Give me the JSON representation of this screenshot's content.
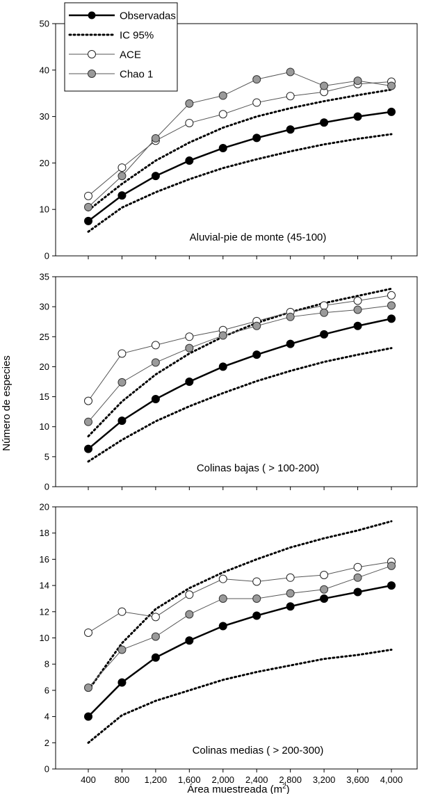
{
  "chart_data": {
    "type": "line",
    "xlabel": "Área muestreada (m",
    "xlabel_sup": "2",
    "xlabel_close": ")",
    "ylabel": "Número de especies",
    "x": [
      400,
      800,
      1200,
      1600,
      2000,
      2400,
      2800,
      3200,
      3600,
      4000
    ],
    "x_tick_labels": [
      "400",
      "800",
      "1,200",
      "1,600",
      "2,000",
      "2,400",
      "2,800",
      "3,200",
      "3,600",
      "4,000"
    ],
    "legend": {
      "placement": "top-left",
      "entries": [
        {
          "label": "Observadas",
          "key": "observadas"
        },
        {
          "label": "IC 95%",
          "key": "ic95"
        },
        {
          "label": "ACE",
          "key": "ace"
        },
        {
          "label": "Chao 1",
          "key": "chao1"
        }
      ]
    },
    "panels": [
      {
        "label": "Aluvial-pie de monte (45-100)",
        "ylim": [
          0,
          50
        ],
        "yticks": [
          0,
          10,
          20,
          30,
          40,
          50
        ],
        "series": {
          "observadas": [
            7.5,
            13,
            17.2,
            20.5,
            23.2,
            25.4,
            27.2,
            28.7,
            30.0,
            31.0
          ],
          "ic_upper": [
            9.8,
            15.5,
            20.5,
            24.4,
            27.6,
            30.0,
            31.8,
            33.3,
            34.6,
            35.8
          ],
          "ic_lower": [
            5.2,
            10.4,
            13.7,
            16.5,
            18.9,
            20.8,
            22.5,
            24.0,
            25.2,
            26.2
          ],
          "ace": [
            12.9,
            19.0,
            24.8,
            28.6,
            30.5,
            33.0,
            34.4,
            35.3,
            37.0,
            37.5
          ],
          "chao1": [
            10.5,
            17.2,
            25.3,
            32.8,
            34.5,
            38.0,
            39.6,
            36.6,
            37.7,
            36.6
          ]
        }
      },
      {
        "label": "Colinas bajas ( > 100-200)",
        "ylim": [
          0,
          35
        ],
        "yticks": [
          0,
          5,
          10,
          15,
          20,
          25,
          30,
          35
        ],
        "series": {
          "observadas": [
            6.3,
            11.0,
            14.6,
            17.5,
            20.0,
            22.0,
            23.8,
            25.4,
            26.8,
            28.0
          ],
          "ic_upper": [
            8.4,
            14.2,
            18.7,
            22.2,
            25.0,
            27.3,
            29.1,
            30.6,
            31.8,
            33.0
          ],
          "ic_lower": [
            4.2,
            7.8,
            10.9,
            13.4,
            15.6,
            17.6,
            19.3,
            20.8,
            22.0,
            23.1
          ],
          "ace": [
            14.3,
            22.2,
            23.6,
            25.0,
            26.1,
            27.6,
            29.1,
            30.2,
            31.0,
            31.9
          ],
          "chao1": [
            10.8,
            17.4,
            20.7,
            23.1,
            25.2,
            26.8,
            28.3,
            29.0,
            29.5,
            30.2
          ]
        }
      },
      {
        "label": "Colinas medias ( > 200-300)",
        "ylim": [
          0,
          20
        ],
        "yticks": [
          0,
          2,
          4,
          6,
          8,
          10,
          12,
          14,
          16,
          18,
          20
        ],
        "series": {
          "observadas": [
            4.0,
            6.6,
            8.5,
            9.8,
            10.9,
            11.7,
            12.4,
            13.0,
            13.5,
            14.0
          ],
          "ic_upper": [
            6.0,
            9.6,
            12.2,
            13.8,
            15.0,
            16.0,
            16.9,
            17.6,
            18.2,
            18.9
          ],
          "ic_lower": [
            2.0,
            4.1,
            5.2,
            6.0,
            6.8,
            7.4,
            7.9,
            8.4,
            8.7,
            9.1
          ],
          "ace": [
            10.4,
            12.0,
            11.6,
            13.3,
            14.5,
            14.3,
            14.6,
            14.8,
            15.4,
            15.8
          ],
          "chao1": [
            6.2,
            9.1,
            10.1,
            11.8,
            13.0,
            13.0,
            13.4,
            13.7,
            14.6,
            15.5
          ]
        }
      }
    ],
    "colors": {
      "observadas": "#000000",
      "ic95": "#000000",
      "ace_fill": "#ffffff",
      "chao1_fill": "#9a9a9a",
      "thin_line": "#555555",
      "background": "#ffffff"
    }
  }
}
